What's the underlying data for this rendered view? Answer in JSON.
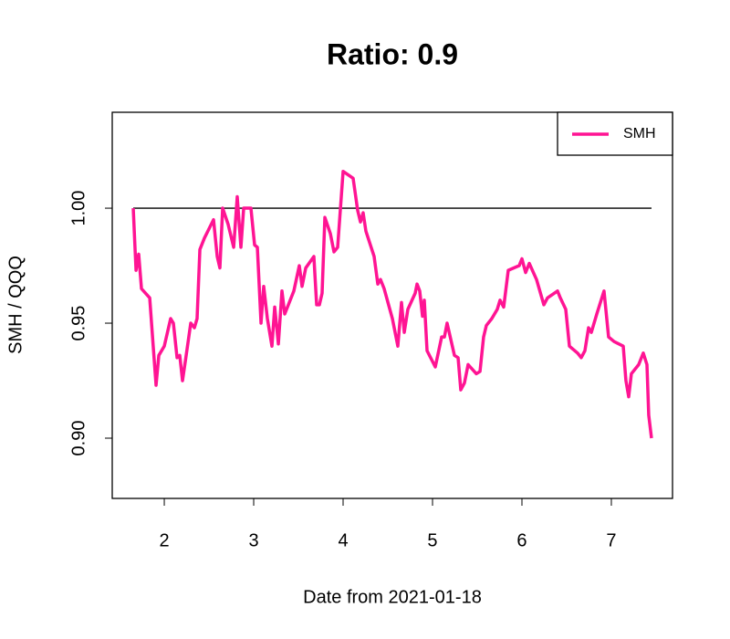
{
  "chart_data": {
    "type": "line",
    "title": "Ratio: 0.9",
    "x_label": "Date from 2021-01-18",
    "y_label": "SMH / QQQ",
    "xlim": [
      1.418,
      7.684
    ],
    "ylim": [
      0.8738,
      1.0417
    ],
    "xticks": [
      2,
      3,
      4,
      5,
      6,
      7
    ],
    "yticks": [
      {
        "value": 0.9,
        "label": "0.90"
      },
      {
        "value": 0.95,
        "label": "0.95"
      },
      {
        "value": 1.0,
        "label": "1.00"
      }
    ],
    "hline": 1.0,
    "legend_position": "top-right",
    "x": [
      1.653,
      1.684,
      1.714,
      1.745,
      1.837,
      1.908,
      1.939,
      2.0,
      2.071,
      2.102,
      2.143,
      2.173,
      2.204,
      2.245,
      2.296,
      2.337,
      2.367,
      2.398,
      2.449,
      2.551,
      2.592,
      2.622,
      2.653,
      2.714,
      2.776,
      2.816,
      2.857,
      2.888,
      2.969,
      3.01,
      3.041,
      3.082,
      3.112,
      3.153,
      3.204,
      3.235,
      3.276,
      3.316,
      3.347,
      3.388,
      3.449,
      3.51,
      3.541,
      3.582,
      3.673,
      3.704,
      3.735,
      3.765,
      3.796,
      3.857,
      3.898,
      3.939,
      4.0,
      4.112,
      4.163,
      4.194,
      4.224,
      4.255,
      4.347,
      4.388,
      4.418,
      4.459,
      4.551,
      4.612,
      4.653,
      4.684,
      4.724,
      4.806,
      4.827,
      4.857,
      4.888,
      4.908,
      4.939,
      5.031,
      5.102,
      5.133,
      5.163,
      5.245,
      5.286,
      5.316,
      5.357,
      5.398,
      5.49,
      5.531,
      5.571,
      5.602,
      5.663,
      5.724,
      5.755,
      5.796,
      5.847,
      5.969,
      6.0,
      6.041,
      6.082,
      6.163,
      6.245,
      6.286,
      6.398,
      6.429,
      6.49,
      6.531,
      6.622,
      6.663,
      6.704,
      6.745,
      6.776,
      6.837,
      6.918,
      6.969,
      7.031,
      7.133,
      7.163,
      7.194,
      7.224,
      7.306,
      7.357,
      7.398,
      7.418,
      7.449
    ],
    "series": [
      {
        "name": "SMH",
        "color": "#ff1493",
        "values": [
          1.0,
          0.973,
          0.98,
          0.965,
          0.961,
          0.923,
          0.936,
          0.94,
          0.952,
          0.95,
          0.935,
          0.936,
          0.925,
          0.936,
          0.95,
          0.948,
          0.952,
          0.982,
          0.987,
          0.995,
          0.979,
          0.974,
          1.0,
          0.993,
          0.983,
          1.005,
          0.983,
          1.0,
          1.0,
          0.984,
          0.983,
          0.95,
          0.966,
          0.952,
          0.94,
          0.957,
          0.941,
          0.964,
          0.954,
          0.958,
          0.964,
          0.975,
          0.966,
          0.974,
          0.979,
          0.958,
          0.958,
          0.963,
          0.996,
          0.989,
          0.981,
          0.983,
          1.016,
          1.013,
          0.999,
          0.994,
          0.998,
          0.99,
          0.979,
          0.967,
          0.969,
          0.965,
          0.952,
          0.94,
          0.959,
          0.946,
          0.956,
          0.963,
          0.967,
          0.964,
          0.953,
          0.96,
          0.938,
          0.931,
          0.944,
          0.944,
          0.95,
          0.936,
          0.935,
          0.921,
          0.924,
          0.932,
          0.928,
          0.929,
          0.944,
          0.949,
          0.952,
          0.956,
          0.96,
          0.957,
          0.973,
          0.975,
          0.978,
          0.972,
          0.976,
          0.969,
          0.958,
          0.961,
          0.964,
          0.961,
          0.956,
          0.94,
          0.937,
          0.935,
          0.938,
          0.948,
          0.946,
          0.954,
          0.964,
          0.944,
          0.942,
          0.94,
          0.925,
          0.918,
          0.928,
          0.932,
          0.937,
          0.932,
          0.91,
          0.9
        ]
      }
    ]
  }
}
